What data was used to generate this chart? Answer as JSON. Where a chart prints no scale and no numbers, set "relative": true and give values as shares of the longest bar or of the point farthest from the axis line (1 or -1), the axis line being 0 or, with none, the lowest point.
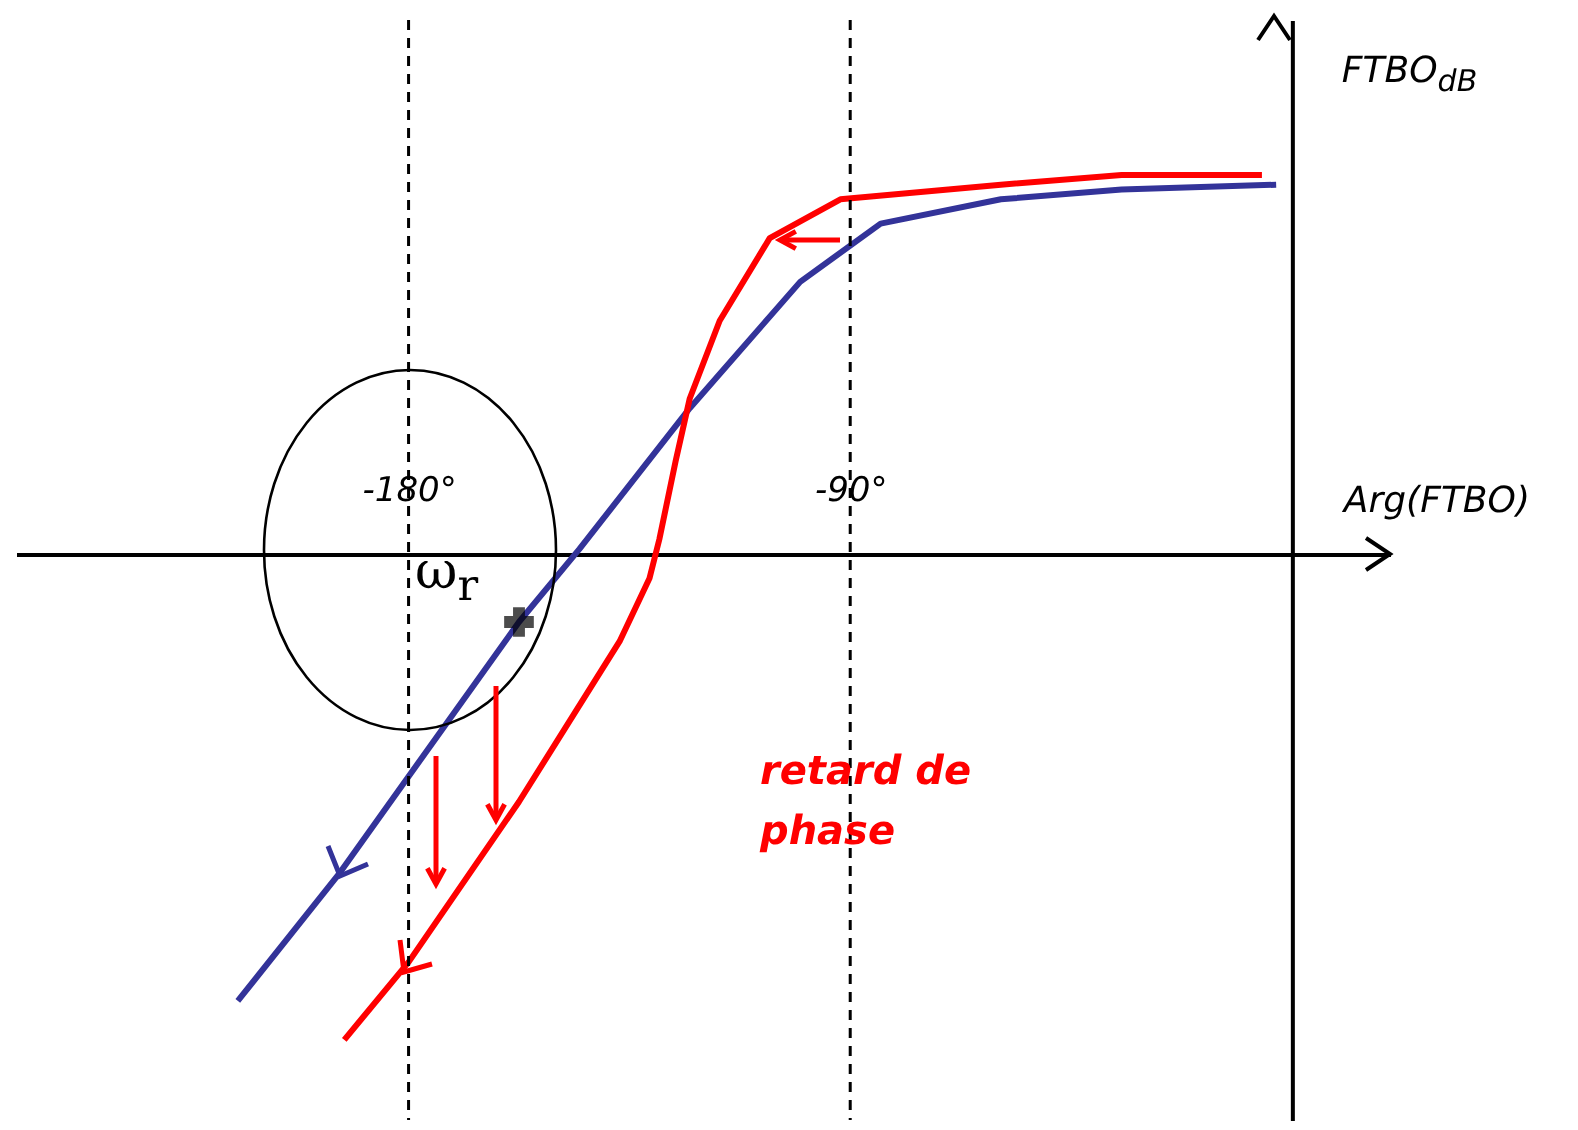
{
  "chart_data": {
    "type": "line",
    "relative": true,
    "xlabel": "Arg(FTBO)",
    "ylabel": "FTBO$_{dB}$",
    "xlim": [
      -260,
      20
    ],
    "xticks": [
      {
        "value": -180,
        "label": "-180°"
      },
      {
        "value": -90,
        "label": "-90°"
      }
    ],
    "series": [
      {
        "color": "#333399",
        "x": [
          -214.8,
          -194.3,
          -157.5,
          -145.2,
          -122.7,
          -100.2,
          -83.8,
          -59.3,
          -34.7,
          -3.2
        ],
        "values": [
          -0.92,
          -0.66,
          -0.14,
          0.01,
          0.3,
          0.56,
          0.68,
          0.73,
          0.75,
          0.76
        ]
      },
      {
        "color": "#ff0000",
        "x": [
          -193.1,
          -180,
          -157.5,
          -137,
          -130.9,
          -128.9,
          -125.6,
          -122.7,
          -116.6,
          -106.4,
          -92,
          -59.3,
          -34.7,
          -6.1
        ],
        "values": [
          -1,
          -0.84,
          -0.51,
          -0.18,
          -0.05,
          0.03,
          0.19,
          0.32,
          0.48,
          0.65,
          0.73,
          0.76,
          0.78,
          0.78
        ]
      }
    ],
    "ref_lines": [
      {
        "axis": "x",
        "value": -180,
        "line_style": "dashed",
        "color": "#000000"
      },
      {
        "axis": "x",
        "value": -90,
        "line_style": "dashed",
        "color": "#000000"
      }
    ],
    "annotations": [
      {
        "text": "ω$_{r}$",
        "x": -157.5,
        "y": -0.14
      },
      "retard de phase"
    ],
    "grid": false,
    "marker": "none",
    "line_style": "solid"
  }
}
